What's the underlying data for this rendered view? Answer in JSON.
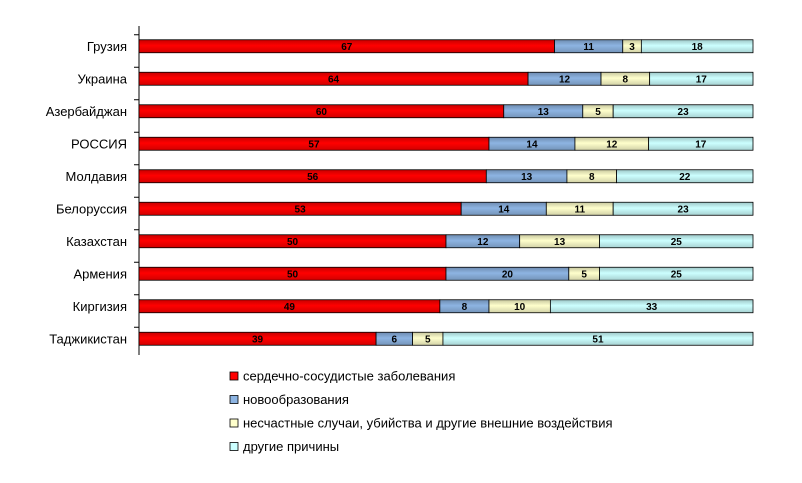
{
  "chart_data": {
    "type": "bar",
    "orientation": "horizontal",
    "stacked": true,
    "percent_stacked": true,
    "categories": [
      "Грузия",
      "Украина",
      "Азербайджан",
      "РОССИЯ",
      "Молдавия",
      "Белоруссия",
      "Казахстан",
      "Армения",
      "Киргизия",
      "Таджикистан"
    ],
    "series": [
      {
        "name": "сердечно-сосудистые заболевания",
        "color": "#ff0000",
        "values": [
          67,
          64,
          60,
          57,
          56,
          53,
          50,
          50,
          49,
          39
        ]
      },
      {
        "name": "новообразования",
        "color": "#8db4e2",
        "values": [
          11,
          12,
          13,
          14,
          13,
          14,
          12,
          20,
          8,
          6
        ]
      },
      {
        "name": "несчастные случаи, убийства и другие внешние воздействия",
        "color": "#ffffcc",
        "values": [
          3,
          8,
          5,
          12,
          8,
          11,
          13,
          5,
          10,
          5
        ]
      },
      {
        "name": "другие причины",
        "color": "#ccffff",
        "values": [
          18,
          17,
          23,
          17,
          22,
          23,
          25,
          25,
          33,
          51
        ]
      }
    ],
    "title": "",
    "xlabel": "",
    "ylabel": "",
    "grid": false,
    "legend_position": "bottom"
  }
}
